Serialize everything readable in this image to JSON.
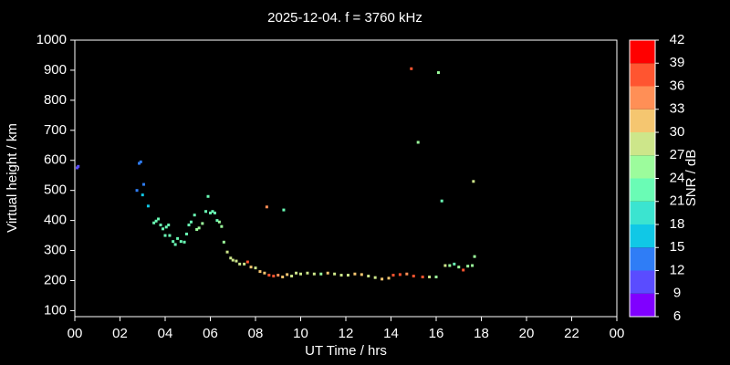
{
  "chart_data": {
    "type": "scatter",
    "title": "2025-12-04. f = 3760 kHz",
    "x_label": "UT Time / hrs",
    "y_label": "Virtual height / km",
    "xlim": [
      0,
      24
    ],
    "xticks": [
      {
        "value": 0,
        "label": "00"
      },
      {
        "value": 2,
        "label": "02"
      },
      {
        "value": 4,
        "label": "04"
      },
      {
        "value": 6,
        "label": "06"
      },
      {
        "value": 8,
        "label": "08"
      },
      10,
      12,
      14,
      16,
      18,
      20,
      22,
      {
        "value": 24,
        "label": "00"
      }
    ],
    "ylim": [
      80,
      1000
    ],
    "yticks": [
      100,
      200,
      300,
      400,
      500,
      600,
      700,
      800,
      900,
      1000
    ],
    "colorbar": {
      "label": "SNR / dB",
      "ticks": [
        6,
        9,
        12,
        15,
        18,
        21,
        24,
        27,
        30,
        33,
        36,
        39,
        42
      ],
      "colors": [
        "#8000ff",
        "#5a4cff",
        "#2f7df6",
        "#10c8e6",
        "#3be4d0",
        "#6afcb5",
        "#9cfc9c",
        "#cde68a",
        "#f5c670",
        "#ff8f56",
        "#ff5530",
        "#ff0000"
      ]
    },
    "x": [
      0.1,
      0.15,
      2.75,
      2.85,
      2.92,
      3.0,
      3.05,
      3.25,
      3.5,
      3.6,
      3.7,
      3.8,
      3.9,
      4.0,
      4.05,
      4.15,
      4.2,
      4.35,
      4.45,
      4.55,
      4.7,
      4.85,
      4.95,
      5.05,
      5.15,
      5.3,
      5.4,
      5.5,
      5.65,
      5.8,
      5.9,
      6.0,
      6.1,
      6.2,
      6.3,
      6.4,
      6.5,
      6.6,
      6.75,
      6.9,
      7.0,
      7.15,
      7.3,
      7.5,
      7.65,
      7.8,
      8.0,
      8.2,
      8.4,
      8.5,
      8.6,
      8.8,
      9.0,
      9.2,
      9.25,
      9.4,
      9.6,
      9.8,
      10.0,
      10.3,
      10.6,
      10.9,
      11.2,
      11.5,
      11.8,
      12.1,
      12.4,
      12.7,
      13.0,
      13.3,
      13.6,
      13.9,
      14.1,
      14.4,
      14.7,
      14.9,
      15.0,
      15.2,
      15.4,
      15.7,
      16.0,
      16.1,
      16.25,
      16.4,
      16.6,
      16.8,
      17.0,
      17.2,
      17.4,
      17.6,
      17.65,
      17.7
    ],
    "values": [
      575,
      580,
      500,
      590,
      595,
      485,
      520,
      448,
      392,
      398,
      405,
      385,
      372,
      350,
      378,
      385,
      350,
      330,
      320,
      340,
      330,
      328,
      355,
      385,
      395,
      418,
      370,
      375,
      390,
      430,
      480,
      425,
      430,
      425,
      400,
      395,
      380,
      328,
      295,
      275,
      268,
      265,
      255,
      255,
      262,
      245,
      242,
      230,
      225,
      445,
      218,
      215,
      218,
      212,
      435,
      220,
      215,
      225,
      222,
      225,
      222,
      222,
      225,
      222,
      218,
      218,
      222,
      220,
      215,
      210,
      205,
      208,
      218,
      220,
      222,
      905,
      215,
      660,
      212,
      212,
      212,
      892,
      465,
      250,
      250,
      255,
      245,
      235,
      248,
      250,
      530,
      280
    ],
    "snr": [
      9,
      9,
      12,
      12,
      12,
      15,
      12,
      15,
      21,
      21,
      21,
      21,
      21,
      21,
      21,
      21,
      21,
      21,
      21,
      21,
      21,
      21,
      21,
      21,
      21,
      21,
      24,
      24,
      24,
      21,
      21,
      21,
      21,
      21,
      21,
      24,
      24,
      24,
      27,
      27,
      27,
      27,
      27,
      27,
      36,
      30,
      27,
      30,
      30,
      33,
      36,
      36,
      33,
      30,
      21,
      30,
      27,
      27,
      27,
      27,
      27,
      24,
      30,
      27,
      27,
      27,
      30,
      30,
      27,
      27,
      30,
      30,
      36,
      36,
      33,
      36,
      36,
      24,
      36,
      27,
      24,
      24,
      21,
      27,
      24,
      21,
      24,
      36,
      24,
      24,
      27,
      24
    ]
  }
}
